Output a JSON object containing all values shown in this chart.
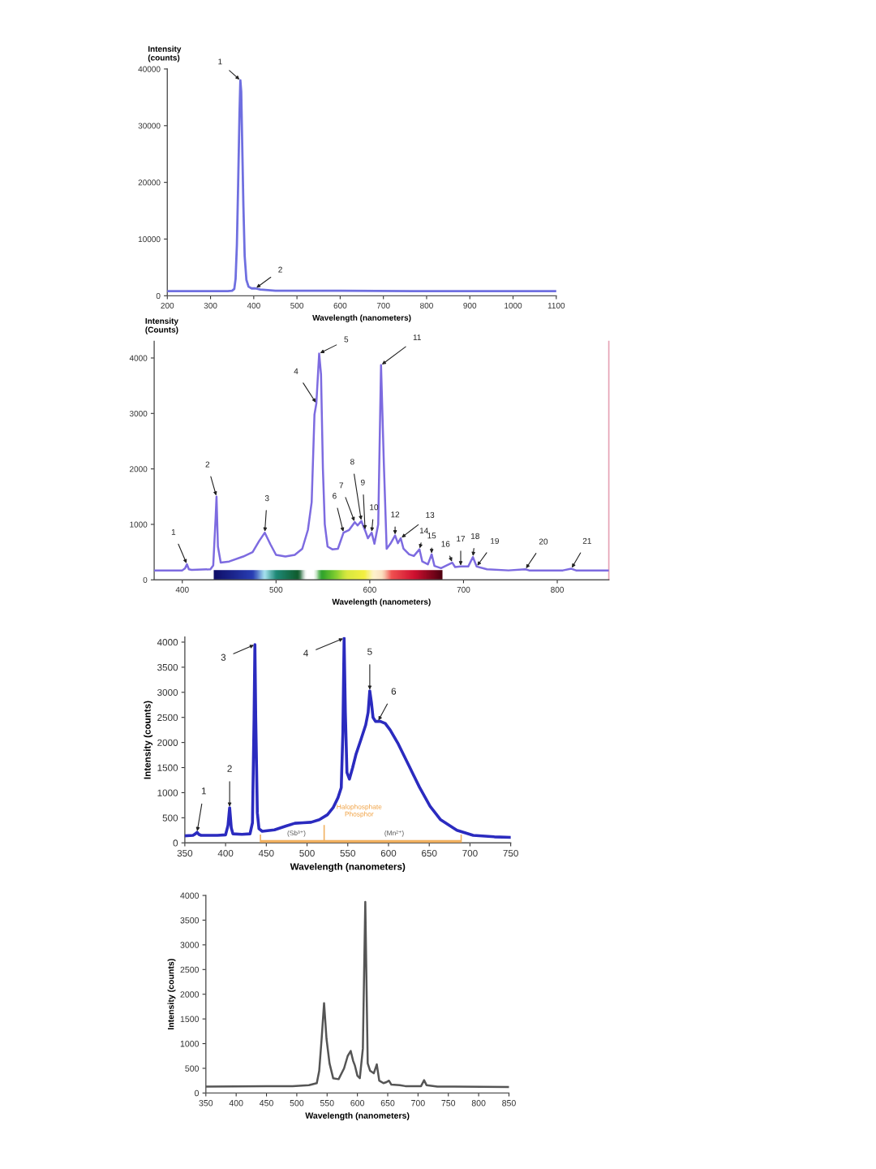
{
  "chart_data": [
    {
      "type": "line",
      "xlabel": "Wavelength (nanometers)",
      "ylabel": "Intensity\n(counts)",
      "x": [
        200,
        300,
        340,
        350,
        355,
        358,
        361,
        364,
        367,
        369,
        371,
        373,
        376,
        379,
        383,
        388,
        395,
        404,
        415,
        450,
        600,
        800,
        1000,
        1100
      ],
      "series": [
        {
          "color": "#6f6fe0",
          "values": [
            800,
            800,
            800,
            900,
            1200,
            3000,
            9000,
            20000,
            32000,
            38000,
            36000,
            28000,
            16000,
            7000,
            2800,
            1600,
            1300,
            1300,
            1100,
            900,
            900,
            800,
            800,
            800
          ]
        }
      ],
      "xlim": [
        200,
        1100
      ],
      "ylim": [
        0,
        40000
      ],
      "xticks": [
        200,
        300,
        400,
        500,
        600,
        700,
        800,
        900,
        1000,
        1100
      ],
      "yticks": [
        0,
        10000,
        20000,
        30000,
        40000
      ],
      "annotations": [
        {
          "text": "1",
          "x": 369,
          "y": 38000
        },
        {
          "text": "2",
          "x": 404,
          "y": 1300
        }
      ]
    },
    {
      "type": "line",
      "xlabel": "Wavelength (nanometers)",
      "ylabel": "Intensity\n(Counts)",
      "x": [
        370,
        400,
        403,
        405,
        407,
        410,
        430,
        433,
        435.5,
        436.5,
        438,
        441,
        450,
        465,
        475,
        482,
        488,
        494,
        500,
        510,
        520,
        528,
        534,
        538,
        541,
        543,
        546,
        548,
        550,
        552,
        555,
        560,
        566,
        572,
        578,
        584,
        587,
        591,
        595,
        598,
        602,
        605,
        609,
        612,
        615,
        618,
        622,
        627,
        630,
        633,
        636,
        642,
        647,
        653,
        656,
        662,
        666,
        669,
        676,
        688,
        691,
        697,
        705,
        710,
        714,
        725,
        748,
        766,
        770,
        806,
        815,
        820,
        855
      ],
      "series": [
        {
          "color": "#7d6be0",
          "values": [
            170,
            170,
            210,
            280,
            190,
            180,
            190,
            260,
            1100,
            1500,
            600,
            310,
            330,
            420,
            500,
            700,
            850,
            640,
            450,
            420,
            450,
            560,
            900,
            1400,
            2980,
            3180,
            4080,
            3700,
            2000,
            1000,
            600,
            550,
            560,
            850,
            900,
            1040,
            980,
            1060,
            890,
            750,
            850,
            650,
            1000,
            3870,
            2100,
            560,
            650,
            800,
            660,
            750,
            560,
            460,
            430,
            550,
            330,
            280,
            460,
            250,
            210,
            310,
            230,
            240,
            240,
            410,
            240,
            190,
            170,
            190,
            170,
            170,
            200,
            170,
            170
          ]
        }
      ],
      "xlim": [
        370,
        855
      ],
      "ylim": [
        0,
        4300
      ],
      "xticks": [
        400,
        500,
        600,
        700,
        800
      ],
      "yticks": [
        0,
        1000,
        2000,
        3000,
        4000
      ],
      "annotations": [
        {
          "text": "1",
          "x": 405,
          "y": 280
        },
        {
          "text": "2",
          "x": 436.5,
          "y": 1500
        },
        {
          "text": "3",
          "x": 488,
          "y": 850
        },
        {
          "text": "4",
          "x": 543,
          "y": 3180
        },
        {
          "text": "5",
          "x": 546,
          "y": 4080
        },
        {
          "text": "6",
          "x": 572,
          "y": 850
        },
        {
          "text": "7",
          "x": 584,
          "y": 1040
        },
        {
          "text": "8",
          "x": 591,
          "y": 1060
        },
        {
          "text": "9",
          "x": 595,
          "y": 890
        },
        {
          "text": "10",
          "x": 602,
          "y": 850
        },
        {
          "text": "11",
          "x": 612,
          "y": 3870
        },
        {
          "text": "12",
          "x": 627,
          "y": 800
        },
        {
          "text": "13",
          "x": 633,
          "y": 750
        },
        {
          "text": "14",
          "x": 653,
          "y": 550
        },
        {
          "text": "15",
          "x": 666,
          "y": 460
        },
        {
          "text": "16",
          "x": 688,
          "y": 310
        },
        {
          "text": "17",
          "x": 697,
          "y": 240
        },
        {
          "text": "18",
          "x": 710,
          "y": 410
        },
        {
          "text": "19",
          "x": 714,
          "y": 240
        },
        {
          "text": "20",
          "x": 766,
          "y": 190
        },
        {
          "text": "21",
          "x": 815,
          "y": 200
        }
      ]
    },
    {
      "type": "line",
      "xlabel": "Wavelength (nanometers)",
      "ylabel": "Intensity (counts)",
      "x": [
        350,
        360,
        363,
        365,
        367,
        370,
        390,
        400,
        403,
        405,
        407,
        409,
        420,
        430,
        433,
        435,
        436,
        437,
        439,
        441,
        445,
        460,
        475,
        485,
        495,
        505,
        515,
        525,
        532,
        538,
        542,
        544,
        545.5,
        547,
        549,
        552,
        556,
        560,
        566,
        572,
        575,
        577,
        579,
        581,
        584,
        590,
        596,
        602,
        612,
        625,
        638,
        651,
        664,
        684,
        704,
        730,
        750
      ],
      "series": [
        {
          "color": "#2b2bbf",
          "values": [
            140,
            150,
            180,
            210,
            170,
            150,
            150,
            160,
            350,
            700,
            300,
            180,
            170,
            180,
            400,
            2500,
            3950,
            2500,
            600,
            280,
            230,
            260,
            340,
            390,
            400,
            410,
            460,
            560,
            700,
            900,
            1100,
            2200,
            4080,
            2600,
            1400,
            1270,
            1500,
            1760,
            2050,
            2350,
            2600,
            3030,
            2800,
            2500,
            2420,
            2420,
            2380,
            2250,
            1970,
            1540,
            1110,
            730,
            460,
            250,
            150,
            120,
            110
          ]
        }
      ],
      "xlim": [
        350,
        750
      ],
      "ylim": [
        0,
        4100
      ],
      "xticks": [
        350,
        400,
        450,
        500,
        550,
        600,
        650,
        700,
        750
      ],
      "yticks": [
        0,
        500,
        1000,
        1500,
        2000,
        2500,
        3000,
        3500,
        4000
      ],
      "annotations": [
        "Halophosphate\nPhosphor",
        "(Sb³⁺)",
        "(Mn²⁺)",
        {
          "text": "1",
          "x": 365,
          "y": 210
        },
        {
          "text": "2",
          "x": 405,
          "y": 700
        },
        {
          "text": "3",
          "x": 436,
          "y": 3950
        },
        {
          "text": "4",
          "x": 545.5,
          "y": 4080
        },
        {
          "text": "5",
          "x": 577,
          "y": 3030
        },
        {
          "text": "6",
          "x": 587,
          "y": 2420
        }
      ]
    },
    {
      "type": "line",
      "xlabel": "Wavelength (nanometers)",
      "ylabel": "Intensity (counts)",
      "x": [
        350,
        450,
        493,
        520,
        533,
        537,
        541,
        545,
        549,
        554,
        560,
        569,
        578,
        584,
        589,
        593,
        596,
        600,
        604,
        609,
        613,
        617,
        621,
        627,
        632,
        636,
        643,
        648,
        652,
        656,
        670,
        679,
        690,
        705,
        710,
        714,
        732,
        760,
        850
      ],
      "series": [
        {
          "color": "#555555",
          "values": [
            130,
            140,
            140,
            160,
            200,
            450,
            1100,
            1820,
            1100,
            600,
            300,
            280,
            500,
            750,
            850,
            650,
            550,
            350,
            300,
            900,
            3870,
            600,
            450,
            400,
            580,
            250,
            200,
            220,
            250,
            170,
            160,
            140,
            140,
            140,
            260,
            160,
            130,
            130,
            120
          ]
        }
      ],
      "xlim": [
        350,
        850
      ],
      "ylim": [
        0,
        4000
      ],
      "xticks": [
        350,
        400,
        450,
        500,
        550,
        600,
        650,
        700,
        750,
        800,
        850
      ],
      "yticks": [
        0,
        500,
        1000,
        1500,
        2000,
        2500,
        3000,
        3500,
        4000
      ]
    }
  ]
}
